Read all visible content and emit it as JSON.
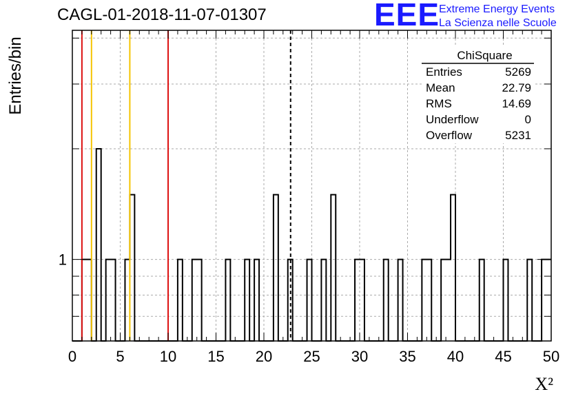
{
  "title": "CAGL-01-2018-11-07-01307",
  "logo": {
    "mark": "EEE",
    "line1": "Extreme Energy Events",
    "line2": "La Scienza nelle Scuole"
  },
  "stats": {
    "name": "ChiSquare",
    "rows": [
      {
        "label": "Entries",
        "value": "5269"
      },
      {
        "label": "Mean",
        "value": "22.79"
      },
      {
        "label": "RMS",
        "value": "14.69"
      },
      {
        "label": "Underflow",
        "value": "0"
      },
      {
        "label": "Overflow",
        "value": "5231"
      }
    ]
  },
  "colors": {
    "red": "#dd1111",
    "yellow": "#f5c400",
    "brand": "#1a1aff"
  },
  "chart_data": {
    "type": "histogram",
    "xlabel": "X²",
    "ylabel": "Entries/bin",
    "xlim": [
      0,
      50
    ],
    "ylim": [
      0.6,
      4.2
    ],
    "yscale": "log",
    "xticks": [
      0,
      5,
      10,
      15,
      20,
      25,
      30,
      35,
      40,
      45,
      50
    ],
    "yticks": [
      1
    ],
    "grid": true,
    "bin_width": 0.5,
    "bins": [
      {
        "x": 1.0,
        "value": 1
      },
      {
        "x": 1.5,
        "value": 1
      },
      {
        "x": 2.5,
        "value": 2
      },
      {
        "x": 3.5,
        "value": 1
      },
      {
        "x": 4.0,
        "value": 1
      },
      {
        "x": 5.5,
        "value": 1
      },
      {
        "x": 6.0,
        "value": 1.5
      },
      {
        "x": 11.0,
        "value": 1
      },
      {
        "x": 12.5,
        "value": 1
      },
      {
        "x": 13.0,
        "value": 1
      },
      {
        "x": 16.0,
        "value": 1
      },
      {
        "x": 18.0,
        "value": 1
      },
      {
        "x": 19.0,
        "value": 1
      },
      {
        "x": 21.0,
        "value": 1.5
      },
      {
        "x": 22.5,
        "value": 1
      },
      {
        "x": 24.5,
        "value": 1
      },
      {
        "x": 26.0,
        "value": 1
      },
      {
        "x": 27.0,
        "value": 1.5
      },
      {
        "x": 29.5,
        "value": 1
      },
      {
        "x": 30.0,
        "value": 1
      },
      {
        "x": 32.5,
        "value": 1
      },
      {
        "x": 34.0,
        "value": 1
      },
      {
        "x": 36.5,
        "value": 1
      },
      {
        "x": 37.0,
        "value": 1
      },
      {
        "x": 38.5,
        "value": 1
      },
      {
        "x": 39.0,
        "value": 1
      },
      {
        "x": 39.5,
        "value": 1.5
      },
      {
        "x": 42.5,
        "value": 1
      },
      {
        "x": 45.0,
        "value": 1
      },
      {
        "x": 47.5,
        "value": 1
      },
      {
        "x": 49.0,
        "value": 1
      },
      {
        "x": 49.5,
        "value": 1
      }
    ],
    "markers": [
      {
        "x": 1.0,
        "color": "red",
        "style": "solid"
      },
      {
        "x": 2.0,
        "color": "yellow",
        "style": "solid"
      },
      {
        "x": 6.0,
        "color": "yellow",
        "style": "solid"
      },
      {
        "x": 10.0,
        "color": "red",
        "style": "solid"
      },
      {
        "x": 22.79,
        "color": "black",
        "style": "dashed"
      }
    ]
  }
}
